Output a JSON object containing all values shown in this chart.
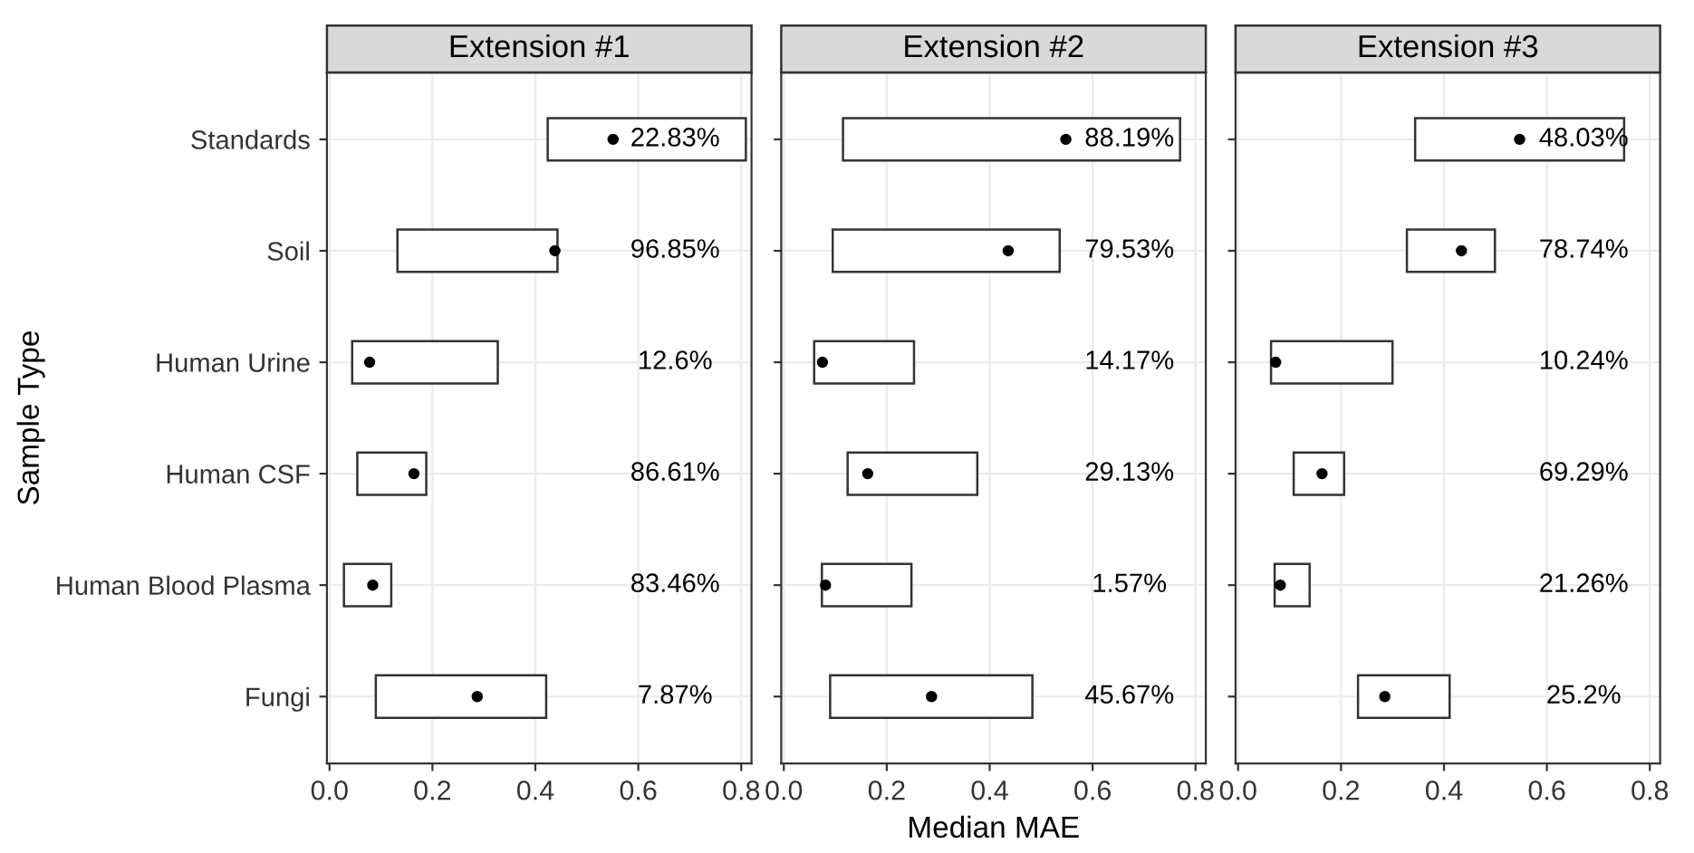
{
  "chart_data": [
    {
      "type": "bar",
      "orientation": "horizontal",
      "title": "Extension #1",
      "ylabel": "Sample Type",
      "categories": [
        "Standards",
        "Soil",
        "Human Urine",
        "Human CSF",
        "Human Blood Plasma",
        "Fungi"
      ],
      "series": [
        {
          "color": "#ffffff",
          "base": [
            0.424,
            0.132,
            0.044,
            0.054,
            0.028,
            0.09
          ],
          "values": [
            0.385,
            0.311,
            0.283,
            0.134,
            0.092,
            0.331
          ]
        },
        {
          "type": "scatter",
          "color": "#000000",
          "values": [
            0.551,
            0.438,
            0.078,
            0.164,
            0.084,
            0.287
          ]
        }
      ],
      "annotations": [
        "22.83%",
        "96.85%",
        "12.6%",
        "86.61%",
        "83.46%",
        "7.87%"
      ],
      "xlim": [
        -0.005,
        0.82
      ],
      "xticks": [
        {
          "value": 0,
          "label": "0.0"
        },
        {
          "value": 0.2,
          "label": "0.2"
        },
        {
          "value": 0.4,
          "label": "0.4"
        },
        {
          "value": 0.6,
          "label": "0.6"
        },
        {
          "value": 0.8,
          "label": "0.8"
        }
      ],
      "grid": true
    },
    {
      "type": "bar",
      "orientation": "horizontal",
      "title": "Extension #2",
      "xlabel": "Median MAE",
      "categories": [
        null,
        null,
        null,
        null,
        null,
        null
      ],
      "series": [
        {
          "color": "#ffffff",
          "base": [
            0.115,
            0.095,
            0.059,
            0.124,
            0.074,
            0.09
          ],
          "values": [
            0.655,
            0.441,
            0.194,
            0.252,
            0.174,
            0.393
          ]
        },
        {
          "type": "scatter",
          "color": "#000000",
          "values": [
            0.548,
            0.436,
            0.075,
            0.163,
            0.081,
            0.287
          ]
        }
      ],
      "annotations": [
        "88.19%",
        "79.53%",
        "14.17%",
        "29.13%",
        "1.57%",
        "45.67%"
      ],
      "xlim": [
        -0.005,
        0.82
      ],
      "xticks": [
        {
          "value": 0,
          "label": "0.0"
        },
        {
          "value": 0.2,
          "label": "0.2"
        },
        {
          "value": 0.4,
          "label": "0.4"
        },
        {
          "value": 0.6,
          "label": "0.6"
        },
        {
          "value": 0.8,
          "label": "0.8"
        }
      ],
      "grid": true,
      "tick_labels": "x"
    },
    {
      "type": "bar",
      "orientation": "horizontal",
      "title": "Extension #3",
      "categories": [
        null,
        null,
        null,
        null,
        null,
        null
      ],
      "series": [
        {
          "color": "#ffffff",
          "base": [
            0.344,
            0.328,
            0.064,
            0.108,
            0.071,
            0.233
          ],
          "values": [
            0.406,
            0.171,
            0.236,
            0.098,
            0.068,
            0.178
          ]
        },
        {
          "type": "scatter",
          "color": "#000000",
          "values": [
            0.547,
            0.434,
            0.073,
            0.163,
            0.082,
            0.285
          ]
        }
      ],
      "annotations": [
        "48.03%",
        "78.74%",
        "10.24%",
        "69.29%",
        "21.26%",
        "25.2%"
      ],
      "xlim": [
        -0.005,
        0.82
      ],
      "xticks": [
        {
          "value": 0,
          "label": "0.0"
        },
        {
          "value": 0.2,
          "label": "0.2"
        },
        {
          "value": 0.4,
          "label": "0.4"
        },
        {
          "value": 0.6,
          "label": "0.6"
        },
        {
          "value": 0.8,
          "label": "0.8"
        }
      ],
      "grid": true,
      "tick_labels": "x"
    }
  ]
}
